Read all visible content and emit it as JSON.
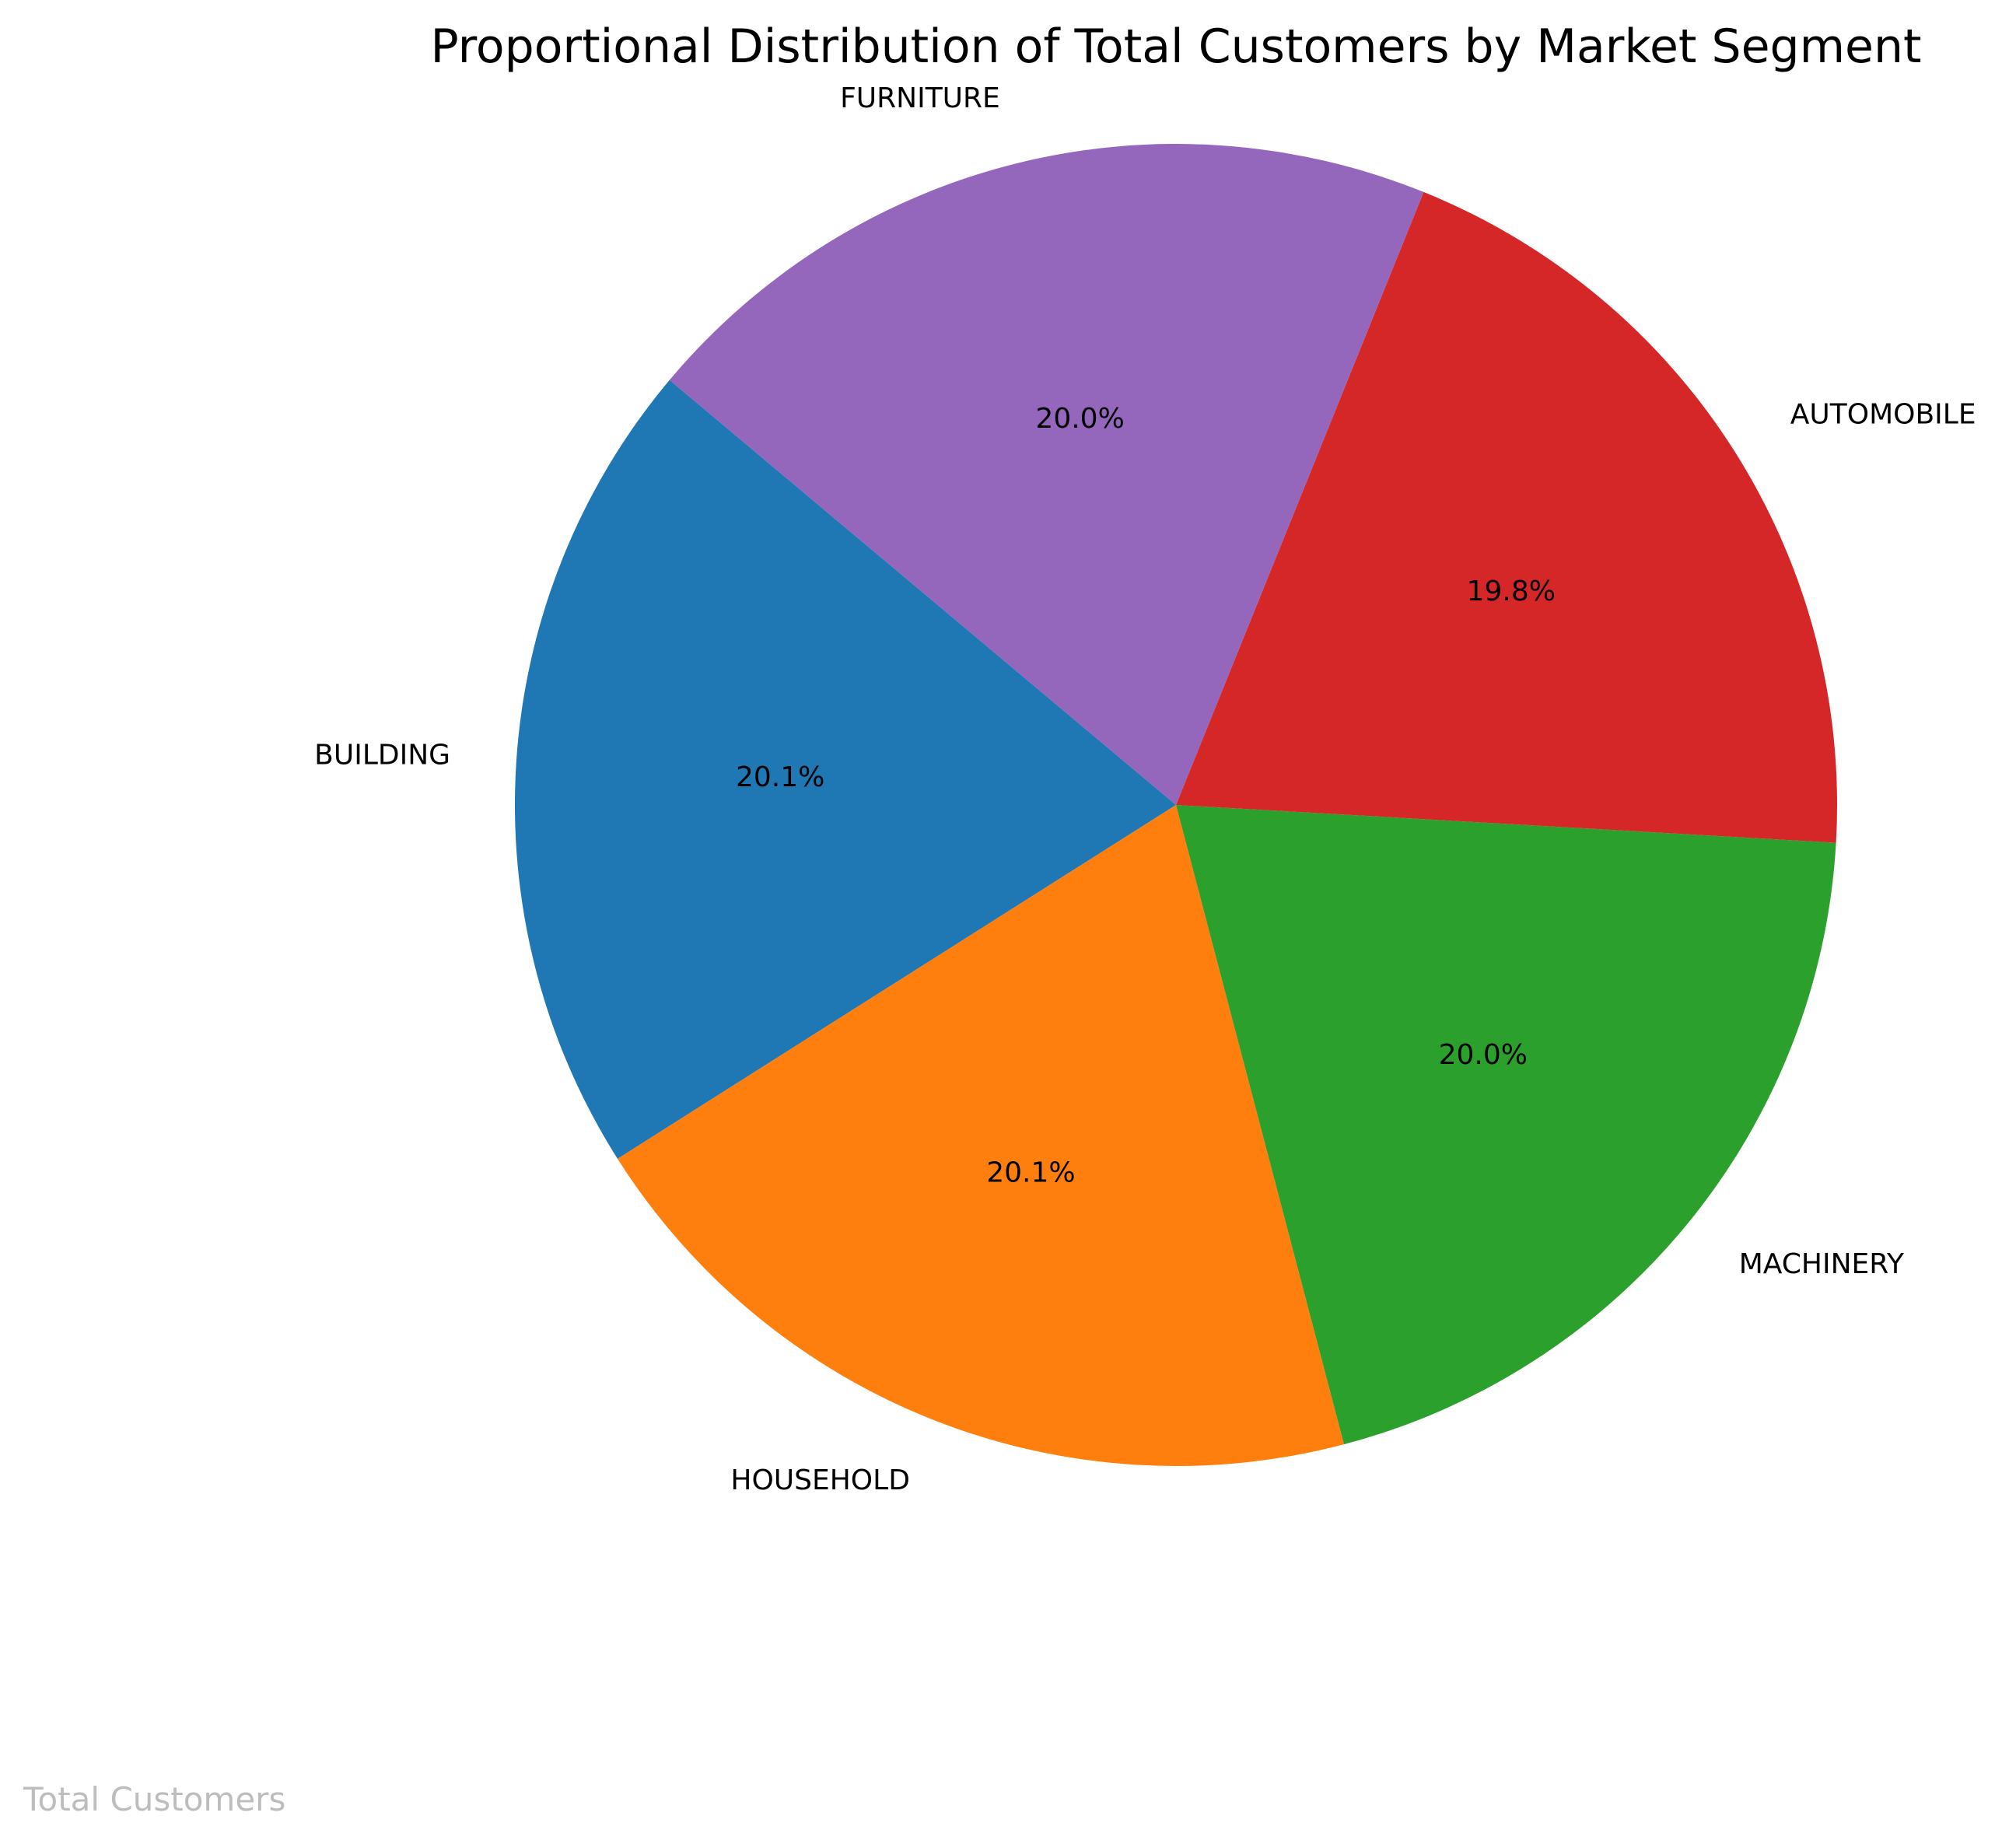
{
  "chart_data": {
    "type": "pie",
    "title": "Proportional Distribution of Total Customers by Market Segment",
    "footer_label": "Total Customers",
    "start_angle_deg": 140,
    "direction": "counterclockwise",
    "slices": [
      {
        "label": "BUILDING",
        "value": 20.1,
        "display": "20.1%",
        "color": "#1f77b4"
      },
      {
        "label": "HOUSEHOLD",
        "value": 20.1,
        "display": "20.1%",
        "color": "#ff7f0e"
      },
      {
        "label": "MACHINERY",
        "value": 20.0,
        "display": "20.0%",
        "color": "#2ca02c"
      },
      {
        "label": "AUTOMOBILE",
        "value": 19.8,
        "display": "19.8%",
        "color": "#d62728"
      },
      {
        "label": "FURNITURE",
        "value": 20.0,
        "display": "20.0%",
        "color": "#9467bd"
      }
    ]
  }
}
